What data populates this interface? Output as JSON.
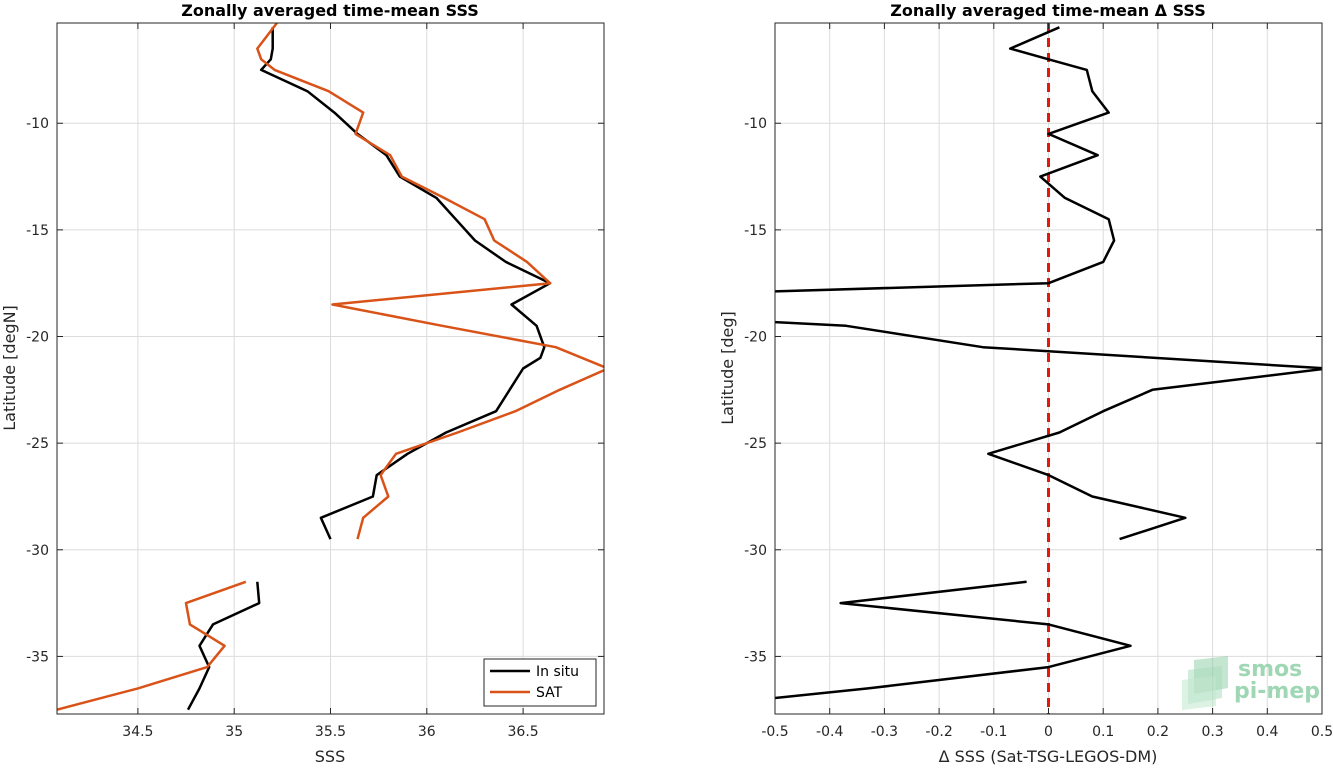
{
  "chart_data": [
    {
      "type": "line",
      "title": "Zonally averaged time-mean SSS",
      "xlabel": "SSS",
      "ylabel": "Latitude [degN]",
      "xlim": [
        34.08,
        36.92
      ],
      "ylim": [
        -37.7,
        -5.3
      ],
      "xticks": [
        34.5,
        35,
        35.5,
        36,
        36.5
      ],
      "yticks": [
        -35,
        -30,
        -25,
        -20,
        -15,
        -10
      ],
      "grid": true,
      "legend_position": "bottom-right",
      "series": [
        {
          "name": "In situ",
          "color": "#000000",
          "segments": [
            [
              [
                35.2,
                -5.5
              ],
              [
                35.2,
                -6.5
              ],
              [
                35.19,
                -7
              ],
              [
                35.14,
                -7.5
              ],
              [
                35.38,
                -8.5
              ],
              [
                35.52,
                -9.5
              ],
              [
                35.64,
                -10.5
              ],
              [
                35.79,
                -11.5
              ],
              [
                35.86,
                -12.5
              ],
              [
                36.05,
                -13.5
              ],
              [
                36.15,
                -14.5
              ],
              [
                36.25,
                -15.5
              ],
              [
                36.41,
                -16.5
              ],
              [
                36.64,
                -17.5
              ],
              [
                36.44,
                -18.5
              ],
              [
                36.57,
                -19.5
              ],
              [
                36.61,
                -20.5
              ],
              [
                36.59,
                -21
              ],
              [
                36.5,
                -21.5
              ],
              [
                36.36,
                -23.5
              ],
              [
                36.1,
                -24.5
              ],
              [
                35.9,
                -25.5
              ],
              [
                35.74,
                -26.5
              ],
              [
                35.72,
                -27.5
              ],
              [
                35.45,
                -28.5
              ],
              [
                35.5,
                -29.5
              ]
            ],
            [
              [
                35.12,
                -31.5
              ],
              [
                35.13,
                -32.5
              ],
              [
                34.89,
                -33.5
              ],
              [
                34.82,
                -34.5
              ],
              [
                34.87,
                -35.5
              ],
              [
                34.82,
                -36.5
              ],
              [
                34.76,
                -37.5
              ]
            ]
          ]
        },
        {
          "name": "SAT",
          "color": "#d95319",
          "segments": [
            [
              [
                35.23,
                -5.2
              ],
              [
                35.12,
                -6.5
              ],
              [
                35.14,
                -7
              ],
              [
                35.21,
                -7.5
              ],
              [
                35.49,
                -8.5
              ],
              [
                35.67,
                -9.5
              ],
              [
                35.63,
                -10.5
              ],
              [
                35.81,
                -11.5
              ],
              [
                35.87,
                -12.5
              ],
              [
                36.09,
                -13.5
              ],
              [
                36.3,
                -14.5
              ],
              [
                36.35,
                -15.5
              ],
              [
                36.52,
                -16.5
              ],
              [
                36.64,
                -17.5
              ],
              [
                35.51,
                -18.5
              ],
              [
                36.08,
                -19.5
              ],
              [
                36.67,
                -20.5
              ],
              [
                36.94,
                -21.5
              ],
              [
                36.69,
                -22.5
              ],
              [
                36.46,
                -23.5
              ],
              [
                36.16,
                -24.5
              ],
              [
                35.84,
                -25.5
              ],
              [
                35.76,
                -26.5
              ],
              [
                35.8,
                -27.5
              ],
              [
                35.67,
                -28.5
              ],
              [
                35.64,
                -29.5
              ]
            ],
            [
              [
                35.06,
                -31.5
              ],
              [
                34.75,
                -32.5
              ],
              [
                34.77,
                -33.5
              ],
              [
                34.95,
                -34.5
              ],
              [
                34.86,
                -35.5
              ],
              [
                34.5,
                -36.5
              ],
              [
                34.08,
                -37.5
              ]
            ]
          ]
        }
      ]
    },
    {
      "type": "line",
      "title": "Zonally averaged time-mean Δ SSS",
      "xlabel": "Δ SSS (Sat-TSG-LEGOS-DM)",
      "ylabel": "Latitude [deg]",
      "xlim": [
        -0.5,
        0.5
      ],
      "ylim": [
        -37.7,
        -5.3
      ],
      "xticks": [
        -0.5,
        -0.4,
        -0.3,
        -0.2,
        -0.1,
        0,
        0.1,
        0.2,
        0.3,
        0.4,
        0.5
      ],
      "yticks": [
        -35,
        -30,
        -25,
        -20,
        -15,
        -10
      ],
      "grid": true,
      "reference_line": {
        "x": 0,
        "color": "#e3170a",
        "style": "dashed"
      },
      "series": [
        {
          "color": "#000000",
          "segments": [
            [
              [
                0.02,
                -5.5
              ],
              [
                -0.07,
                -6.5
              ],
              [
                0.0,
                -7
              ],
              [
                0.07,
                -7.5
              ],
              [
                0.08,
                -8.5
              ],
              [
                0.11,
                -9.5
              ],
              [
                0.0,
                -10.5
              ],
              [
                0.09,
                -11.5
              ],
              [
                -0.015,
                -12.5
              ],
              [
                0.03,
                -13.5
              ],
              [
                0.11,
                -14.5
              ],
              [
                0.12,
                -15.5
              ],
              [
                0.1,
                -16.5
              ],
              [
                0.0,
                -17.5
              ],
              [
                -0.52,
                -17.9
              ]
            ],
            [
              [
                -0.52,
                -19.3
              ],
              [
                -0.37,
                -19.5
              ],
              [
                -0.12,
                -20.5
              ],
              [
                0.51,
                -21.5
              ],
              [
                0.19,
                -22.5
              ],
              [
                0.1,
                -23.5
              ],
              [
                0.02,
                -24.5
              ],
              [
                -0.11,
                -25.5
              ],
              [
                0.0,
                -26.5
              ],
              [
                0.08,
                -27.5
              ],
              [
                0.25,
                -28.5
              ],
              [
                0.13,
                -29.5
              ]
            ],
            [
              [
                -0.04,
                -31.5
              ],
              [
                -0.38,
                -32.5
              ],
              [
                0.0,
                -33.5
              ],
              [
                0.15,
                -34.5
              ],
              [
                0.0,
                -35.5
              ],
              [
                -0.33,
                -36.5
              ],
              [
                -0.52,
                -37.0
              ]
            ]
          ]
        }
      ]
    }
  ],
  "legend": {
    "items": [
      {
        "label": "In situ",
        "color": "#000000"
      },
      {
        "label": "SAT",
        "color": "#d95319"
      }
    ]
  },
  "logo": {
    "line1": "smos",
    "line2": "pi-mep"
  }
}
